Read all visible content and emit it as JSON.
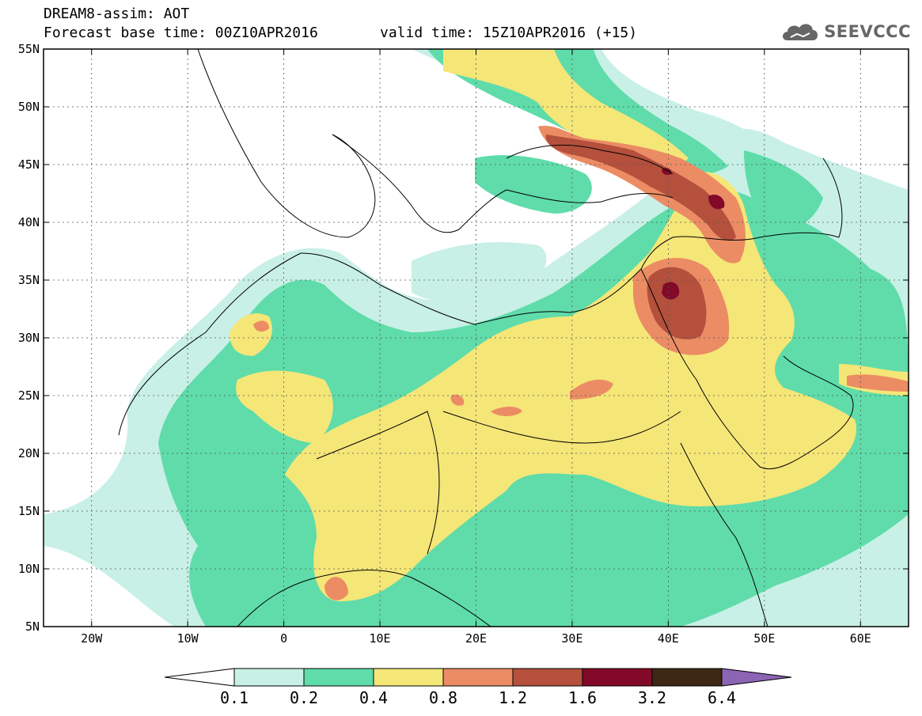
{
  "title_line1": "DREAM8-assim: AOT",
  "title_line2": "Forecast base time: 00Z10APR2016",
  "title_valid": "valid time: 15Z10APR2016 (+15)",
  "logo": {
    "icon": "cloud-logo-icon",
    "text": "SEEVCCC"
  },
  "map": {
    "lon_min": -25,
    "lon_max": 65,
    "lat_min": 5,
    "lat_max": 55,
    "lat_labels": [
      "55N",
      "50N",
      "45N",
      "40N",
      "35N",
      "30N",
      "25N",
      "20N",
      "15N",
      "10N",
      "5N"
    ],
    "lat_values": [
      55,
      50,
      45,
      40,
      35,
      30,
      25,
      20,
      15,
      10,
      5
    ],
    "lon_labels": [
      "20W",
      "10W",
      "0",
      "10E",
      "20E",
      "30E",
      "40E",
      "50E",
      "60E"
    ],
    "lon_values": [
      -20,
      -10,
      0,
      10,
      20,
      30,
      40,
      50,
      60
    ],
    "grid": true
  },
  "colorbar": {
    "labels": [
      "0.1",
      "0.2",
      "0.4",
      "0.8",
      "1.2",
      "1.6",
      "3.2",
      "6.4"
    ],
    "colors": [
      "#ffffff",
      "#c8f0e6",
      "#5fdcaa",
      "#f5e678",
      "#eb8c64",
      "#b4503c",
      "#820a28",
      "#3c2814",
      "#8c64b4"
    ]
  }
}
